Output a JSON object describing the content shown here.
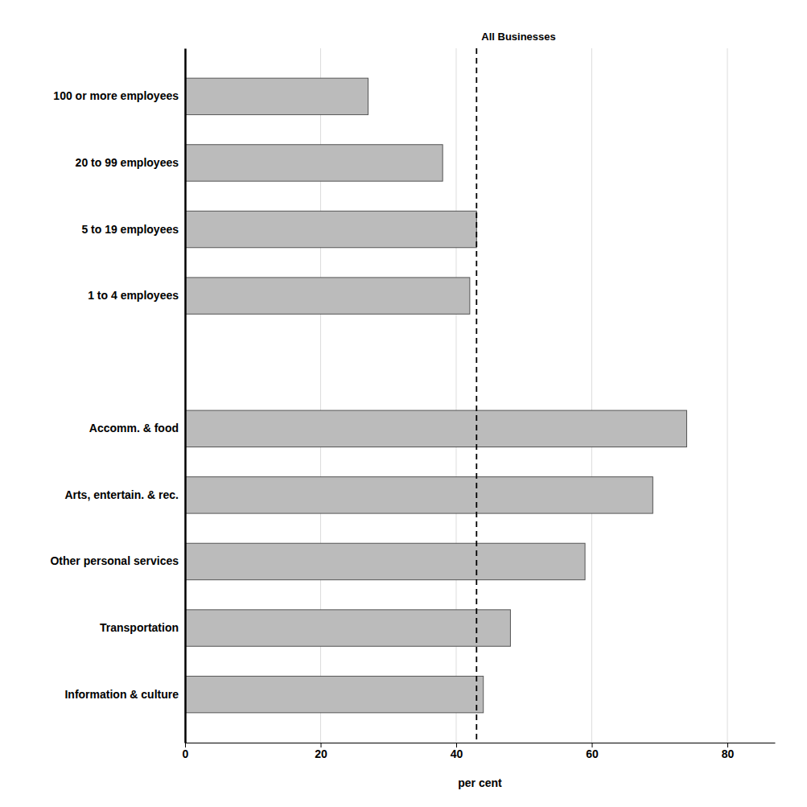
{
  "chart_data": {
    "type": "bar",
    "orientation": "horizontal",
    "x_label": "per cent",
    "categories": [
      "Information & culture",
      "Transportation",
      "Other personal services",
      "Arts, entertain. & rec.",
      "Accomm. & food",
      null,
      "1 to 4 employees",
      "5 to 19 employees",
      "20 to 99 employees",
      "100 or more employees"
    ],
    "values": [
      44,
      48,
      59,
      69,
      74,
      null,
      42,
      43,
      38,
      27
    ],
    "color": "#bbbbbb",
    "xlim": [
      0,
      87
    ],
    "xticks": [
      0,
      20,
      40,
      60,
      80
    ],
    "grid": true,
    "annotations": [
      {
        "text": "All Businesses",
        "x": 43
      }
    ]
  }
}
